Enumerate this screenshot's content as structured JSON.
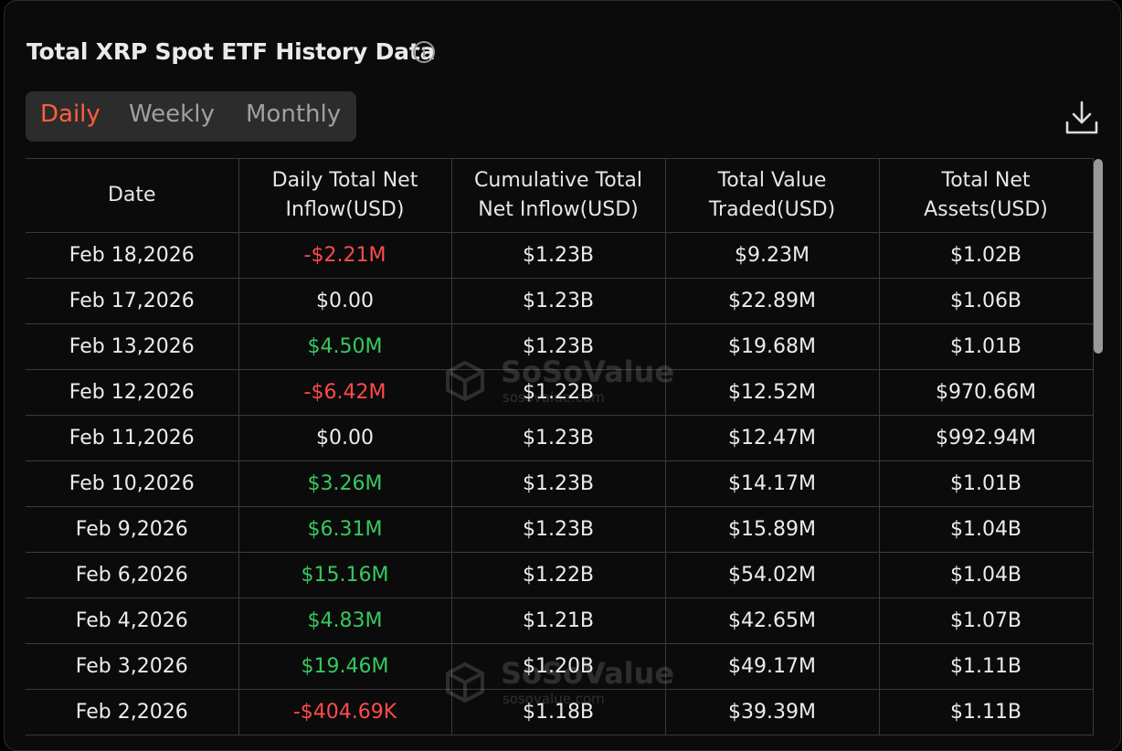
{
  "header": {
    "title": "Total XRP Spot ETF History Data"
  },
  "tabs": [
    {
      "label": "Daily",
      "active": true
    },
    {
      "label": "Weekly",
      "active": false
    },
    {
      "label": "Monthly",
      "active": false
    }
  ],
  "colors": {
    "accent": "#ff5f3c",
    "negative": "#ff4b4b",
    "positive": "#36c95f",
    "background": "#0b0b0b"
  },
  "icons": {
    "info": "info-icon",
    "download": "download-icon",
    "watermark": "sosovalue-logo"
  },
  "watermark": {
    "name": "SoSoValue",
    "site": "sosovalue.com"
  },
  "table": {
    "columns": [
      [
        "Date"
      ],
      [
        "Daily Total Net",
        "Inflow(USD)"
      ],
      [
        "Cumulative Total",
        "Net Inflow(USD)"
      ],
      [
        "Total Value",
        "Traded(USD)"
      ],
      [
        "Total Net",
        "Assets(USD)"
      ]
    ],
    "rows": [
      {
        "date": "Feb 18,2026",
        "inflow": "-$2.21M",
        "trend": "neg",
        "cumulative": "$1.23B",
        "traded": "$9.23M",
        "assets": "$1.02B"
      },
      {
        "date": "Feb 17,2026",
        "inflow": "$0.00",
        "trend": "zero",
        "cumulative": "$1.23B",
        "traded": "$22.89M",
        "assets": "$1.06B"
      },
      {
        "date": "Feb 13,2026",
        "inflow": "$4.50M",
        "trend": "pos",
        "cumulative": "$1.23B",
        "traded": "$19.68M",
        "assets": "$1.01B"
      },
      {
        "date": "Feb 12,2026",
        "inflow": "-$6.42M",
        "trend": "neg",
        "cumulative": "$1.22B",
        "traded": "$12.52M",
        "assets": "$970.66M"
      },
      {
        "date": "Feb 11,2026",
        "inflow": "$0.00",
        "trend": "zero",
        "cumulative": "$1.23B",
        "traded": "$12.47M",
        "assets": "$992.94M"
      },
      {
        "date": "Feb 10,2026",
        "inflow": "$3.26M",
        "trend": "pos",
        "cumulative": "$1.23B",
        "traded": "$14.17M",
        "assets": "$1.01B"
      },
      {
        "date": "Feb 9,2026",
        "inflow": "$6.31M",
        "trend": "pos",
        "cumulative": "$1.23B",
        "traded": "$15.89M",
        "assets": "$1.04B"
      },
      {
        "date": "Feb 6,2026",
        "inflow": "$15.16M",
        "trend": "pos",
        "cumulative": "$1.22B",
        "traded": "$54.02M",
        "assets": "$1.04B"
      },
      {
        "date": "Feb 4,2026",
        "inflow": "$4.83M",
        "trend": "pos",
        "cumulative": "$1.21B",
        "traded": "$42.65M",
        "assets": "$1.07B"
      },
      {
        "date": "Feb 3,2026",
        "inflow": "$19.46M",
        "trend": "pos",
        "cumulative": "$1.20B",
        "traded": "$49.17M",
        "assets": "$1.11B"
      },
      {
        "date": "Feb 2,2026",
        "inflow": "-$404.69K",
        "trend": "neg",
        "cumulative": "$1.18B",
        "traded": "$39.39M",
        "assets": "$1.11B"
      }
    ]
  }
}
